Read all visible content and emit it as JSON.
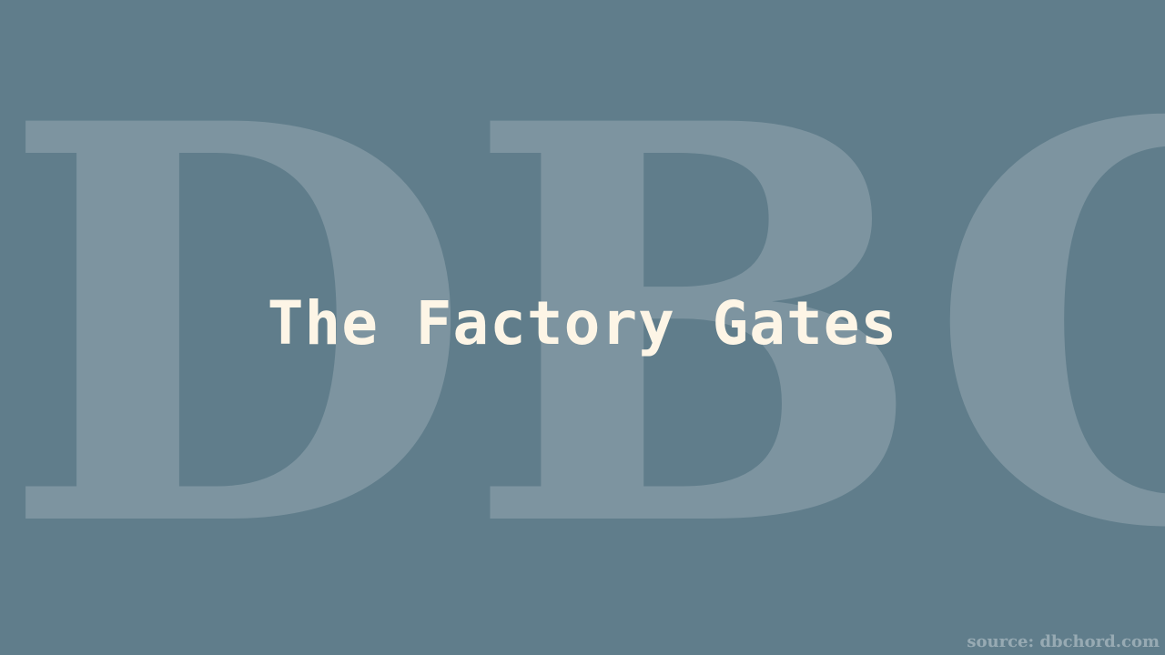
{
  "watermark": {
    "text": "DBC"
  },
  "title": "The Factory Gates",
  "source": "source: dbchord.com",
  "colors": {
    "background": "#607d8b",
    "title": "#fdf5e6",
    "watermark": "#ffffff",
    "source": "#ffffff"
  }
}
